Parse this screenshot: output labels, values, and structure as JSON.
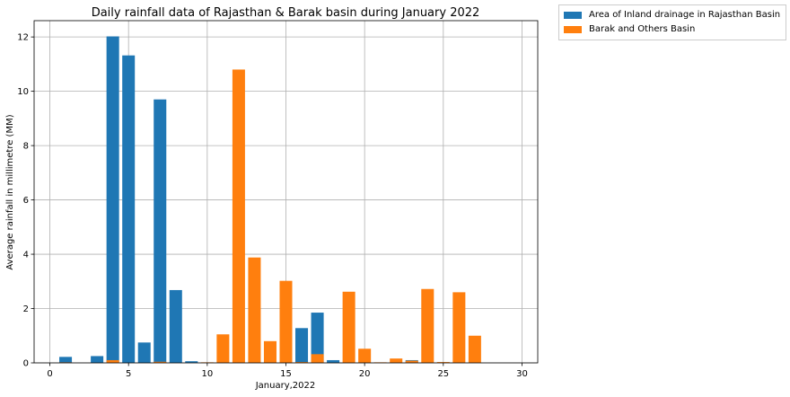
{
  "chart_data": {
    "type": "bar",
    "title": "Daily rainfall data of Rajasthan & Barak basin during January 2022",
    "xlabel": "January,2022",
    "ylabel": "Average rainfall in millimetre (MM)",
    "xlim": [
      -1,
      31
    ],
    "ylim": [
      0,
      12.6
    ],
    "xticks": [
      0,
      5,
      10,
      15,
      20,
      25,
      30
    ],
    "yticks": [
      0,
      2,
      4,
      6,
      8,
      10,
      12
    ],
    "grid": true,
    "legend_position": "outside top-right",
    "x": [
      1,
      2,
      3,
      4,
      5,
      6,
      7,
      8,
      9,
      10,
      11,
      12,
      13,
      14,
      15,
      16,
      17,
      18,
      19,
      20,
      21,
      22,
      23,
      24,
      25,
      26,
      27,
      28,
      29,
      30
    ],
    "series": [
      {
        "name": "Area of Inland drainage in Rajasthan Basin",
        "color": "#1f77b4",
        "values": [
          0.22,
          0,
          0.25,
          12.02,
          11.32,
          0.75,
          9.7,
          2.68,
          0.06,
          0,
          0,
          0,
          0,
          0,
          0,
          1.28,
          1.85,
          0.1,
          0,
          0,
          0,
          0,
          0.1,
          0,
          0,
          0,
          0,
          0,
          0,
          0
        ]
      },
      {
        "name": "Barak and Others Basin",
        "color": "#ff7f0e",
        "values": [
          0.02,
          0,
          0,
          0.1,
          0,
          0,
          0.04,
          0,
          0,
          0.02,
          1.05,
          10.8,
          3.88,
          0.8,
          3.02,
          0.03,
          0.32,
          0,
          2.62,
          0.52,
          0.02,
          0.16,
          0.08,
          2.72,
          0.03,
          2.6,
          1.0,
          0,
          0,
          0
        ]
      }
    ]
  }
}
